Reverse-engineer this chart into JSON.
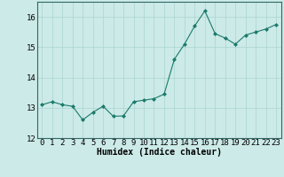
{
  "title": "",
  "xlabel": "Humidex (Indice chaleur)",
  "ylabel": "",
  "x": [
    0,
    1,
    2,
    3,
    4,
    5,
    6,
    7,
    8,
    9,
    10,
    11,
    12,
    13,
    14,
    15,
    16,
    17,
    18,
    19,
    20,
    21,
    22,
    23
  ],
  "y": [
    13.1,
    13.2,
    13.1,
    13.05,
    12.6,
    12.85,
    13.05,
    12.72,
    12.73,
    13.2,
    13.25,
    13.3,
    13.45,
    14.6,
    15.1,
    15.7,
    16.2,
    15.45,
    15.3,
    15.1,
    15.4,
    15.5,
    15.6,
    15.75
  ],
  "line_color": "#1a7a6a",
  "marker": "D",
  "marker_size": 2.0,
  "bg_color": "#cceae8",
  "grid_color": "#aad4d0",
  "ylim": [
    12,
    16.5
  ],
  "xlim": [
    -0.5,
    23.5
  ],
  "yticks": [
    12,
    13,
    14,
    15,
    16
  ],
  "xticks": [
    0,
    1,
    2,
    3,
    4,
    5,
    6,
    7,
    8,
    9,
    10,
    11,
    12,
    13,
    14,
    15,
    16,
    17,
    18,
    19,
    20,
    21,
    22,
    23
  ],
  "xlabel_fontsize": 7,
  "tick_fontsize": 6.5,
  "spine_color": "#336666",
  "line_width": 0.8
}
